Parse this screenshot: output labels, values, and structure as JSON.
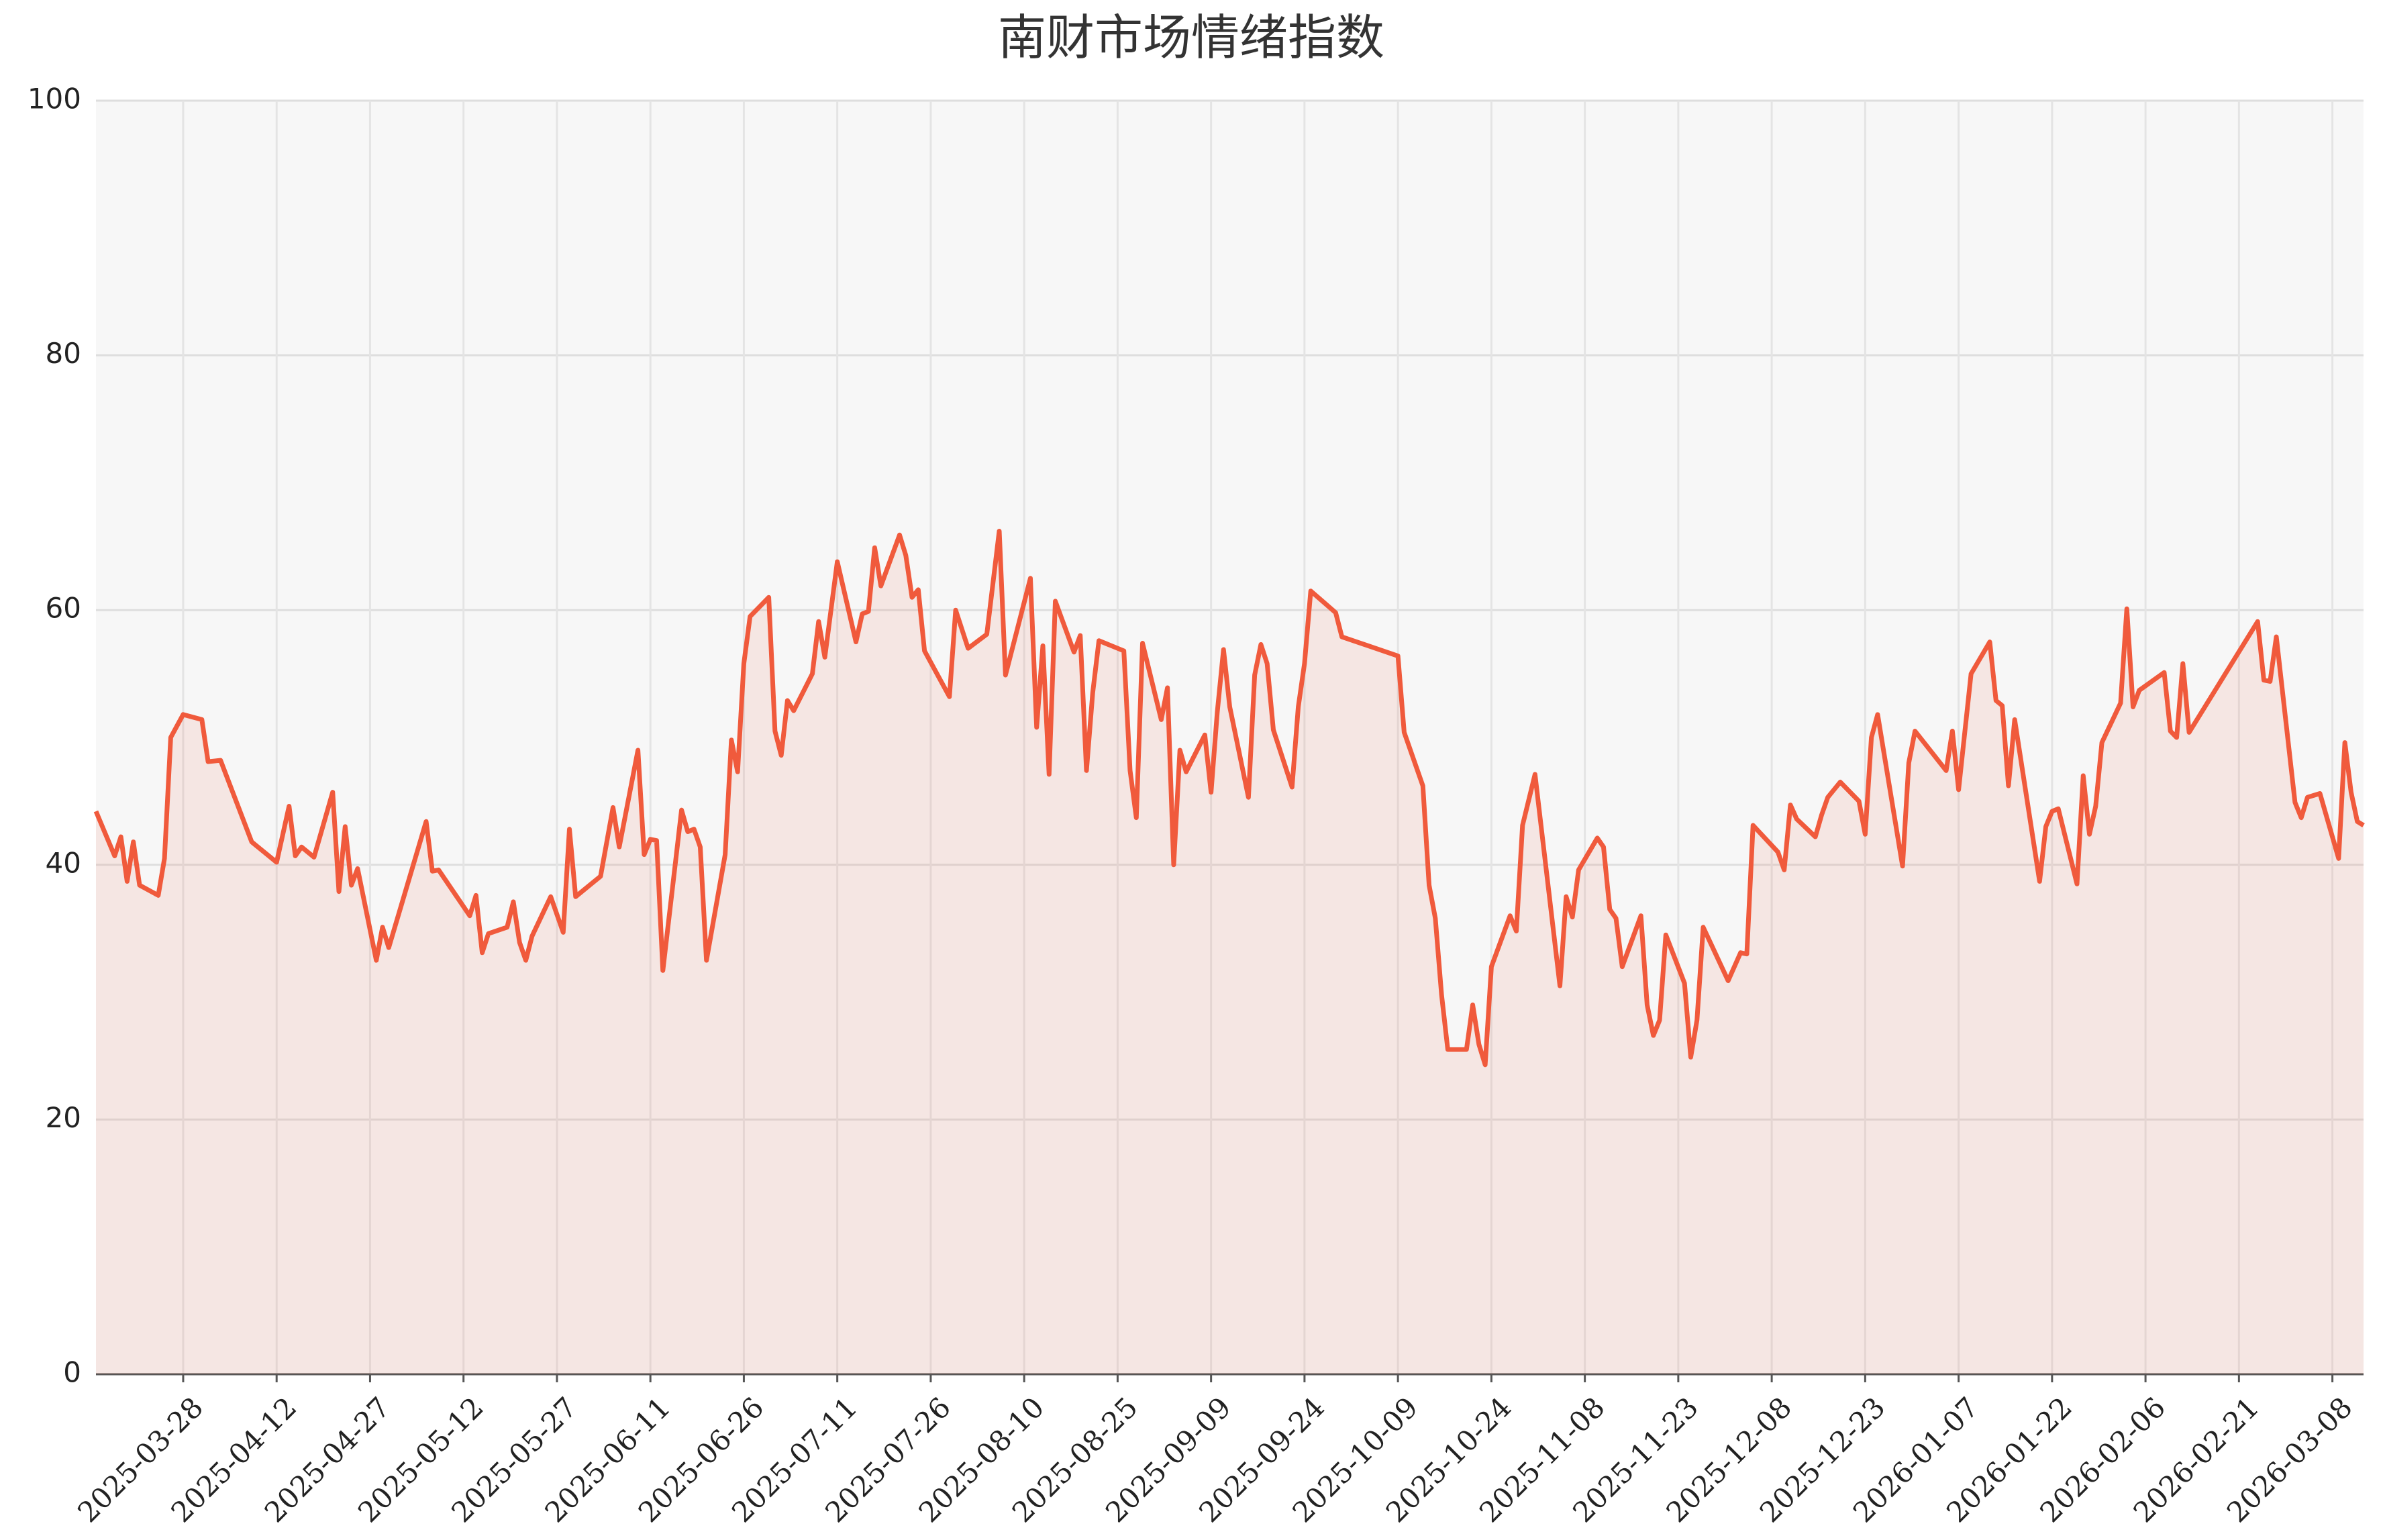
{
  "chart_data": {
    "type": "line",
    "title": "南财市场情绪指数",
    "x": [
      "2025-03-14",
      "2025-03-17",
      "2025-03-18",
      "2025-03-19",
      "2025-03-20",
      "2025-03-21",
      "2025-03-24",
      "2025-03-25",
      "2025-03-26",
      "2025-03-28",
      "2025-03-31",
      "2025-04-01",
      "2025-04-03",
      "2025-04-08",
      "2025-04-12",
      "2025-04-14",
      "2025-04-15",
      "2025-04-16",
      "2025-04-18",
      "2025-04-21",
      "2025-04-22",
      "2025-04-23",
      "2025-04-24",
      "2025-04-25",
      "2025-04-28",
      "2025-04-29",
      "2025-04-30",
      "2025-05-06",
      "2025-05-07",
      "2025-05-08",
      "2025-05-13",
      "2025-05-14",
      "2025-05-15",
      "2025-05-16",
      "2025-05-19",
      "2025-05-20",
      "2025-05-21",
      "2025-05-22",
      "2025-05-23",
      "2025-05-26",
      "2025-05-28",
      "2025-05-29",
      "2025-05-30",
      "2025-06-03",
      "2025-06-05",
      "2025-06-06",
      "2025-06-09",
      "2025-06-10",
      "2025-06-11",
      "2025-06-12",
      "2025-06-13",
      "2025-06-16",
      "2025-06-17",
      "2025-06-18",
      "2025-06-19",
      "2025-06-20",
      "2025-06-23",
      "2025-06-24",
      "2025-06-25",
      "2025-06-26",
      "2025-06-27",
      "2025-06-30",
      "2025-07-01",
      "2025-07-02",
      "2025-07-03",
      "2025-07-04",
      "2025-07-07",
      "2025-07-08",
      "2025-07-09",
      "2025-07-11",
      "2025-07-14",
      "2025-07-15",
      "2025-07-16",
      "2025-07-17",
      "2025-07-18",
      "2025-07-21",
      "2025-07-22",
      "2025-07-23",
      "2025-07-24",
      "2025-07-25",
      "2025-07-29",
      "2025-07-30",
      "2025-08-01",
      "2025-08-04",
      "2025-08-06",
      "2025-08-07",
      "2025-08-11",
      "2025-08-12",
      "2025-08-13",
      "2025-08-14",
      "2025-08-15",
      "2025-08-18",
      "2025-08-19",
      "2025-08-20",
      "2025-08-21",
      "2025-08-22",
      "2025-08-26",
      "2025-08-27",
      "2025-08-28",
      "2025-08-29",
      "2025-09-01",
      "2025-09-02",
      "2025-09-03",
      "2025-09-04",
      "2025-09-05",
      "2025-09-08",
      "2025-09-09",
      "2025-09-10",
      "2025-09-11",
      "2025-09-12",
      "2025-09-15",
      "2025-09-16",
      "2025-09-17",
      "2025-09-18",
      "2025-09-19",
      "2025-09-22",
      "2025-09-23",
      "2025-09-24",
      "2025-09-25",
      "2025-09-29",
      "2025-09-30",
      "2025-10-09",
      "2025-10-10",
      "2025-10-13",
      "2025-10-14",
      "2025-10-15",
      "2025-10-16",
      "2025-10-17",
      "2025-10-20",
      "2025-10-21",
      "2025-10-22",
      "2025-10-23",
      "2025-10-24",
      "2025-10-27",
      "2025-10-28",
      "2025-10-29",
      "2025-10-31",
      "2025-11-04",
      "2025-11-05",
      "2025-11-06",
      "2025-11-07",
      "2025-11-10",
      "2025-11-11",
      "2025-11-12",
      "2025-11-13",
      "2025-11-14",
      "2025-11-17",
      "2025-11-18",
      "2025-11-19",
      "2025-11-20",
      "2025-11-21",
      "2025-11-24",
      "2025-11-25",
      "2025-11-26",
      "2025-11-27",
      "2025-12-01",
      "2025-12-03",
      "2025-12-04",
      "2025-12-05",
      "2025-12-09",
      "2025-12-10",
      "2025-12-11",
      "2025-12-12",
      "2025-12-15",
      "2025-12-16",
      "2025-12-17",
      "2025-12-19",
      "2025-12-22",
      "2025-12-23",
      "2025-12-24",
      "2025-12-25",
      "2025-12-29",
      "2025-12-30",
      "2025-12-31",
      "2026-01-05",
      "2026-01-06",
      "2026-01-07",
      "2026-01-09",
      "2026-01-12",
      "2026-01-13",
      "2026-01-14",
      "2026-01-15",
      "2026-01-16",
      "2026-01-20",
      "2026-01-21",
      "2026-01-22",
      "2026-01-23",
      "2026-01-26",
      "2026-01-27",
      "2026-01-28",
      "2026-01-29",
      "2026-01-30",
      "2026-02-02",
      "2026-02-03",
      "2026-02-04",
      "2026-02-05",
      "2026-02-09",
      "2026-02-10",
      "2026-02-11",
      "2026-02-12",
      "2026-02-13",
      "2026-02-24",
      "2026-02-25",
      "2026-02-26",
      "2026-02-27",
      "2026-03-02",
      "2026-03-03",
      "2026-03-04",
      "2026-03-06",
      "2026-03-09",
      "2026-03-10",
      "2026-03-11",
      "2026-03-12",
      "2026-03-13"
    ],
    "series": [
      {
        "name": "南财市场情绪指数",
        "color": "#f05a3c",
        "values": [
          44.2,
          40.7,
          42.2,
          38.7,
          41.8,
          38.4,
          37.6,
          40.5,
          50,
          51.8,
          51.4,
          48.1,
          48.2,
          41.8,
          40.2,
          44.6,
          40.7,
          41.4,
          40.6,
          45.7,
          37.9,
          43,
          38.4,
          39.7,
          32.5,
          35.1,
          33.5,
          43.4,
          39.5,
          39.6,
          36,
          37.6,
          33.1,
          34.6,
          35.1,
          37.1,
          33.9,
          32.5,
          34.4,
          37.5,
          34.7,
          42.8,
          37.5,
          39.1,
          44.5,
          41.4,
          49,
          40.8,
          42,
          41.9,
          31.7,
          44.3,
          42.6,
          42.8,
          41.4,
          32.5,
          40.8,
          49.8,
          47.3,
          55.8,
          59.5,
          61,
          50.5,
          48.6,
          52.9,
          52.1,
          55,
          59.1,
          56.3,
          63.8,
          57.5,
          59.7,
          59.9,
          64.9,
          61.9,
          65.9,
          64.3,
          61,
          61.6,
          56.8,
          53.2,
          60,
          57,
          58.1,
          66.2,
          54.9,
          62.5,
          50.8,
          57.2,
          47.1,
          60.7,
          56.7,
          58,
          47.4,
          53.5,
          57.6,
          56.8,
          47.4,
          43.7,
          57.4,
          51.4,
          53.9,
          40,
          49,
          47.3,
          50.2,
          45.7,
          52,
          56.9,
          52.4,
          45.3,
          54.9,
          57.3,
          55.8,
          50.6,
          46.1,
          52.4,
          55.8,
          61.5,
          59.8,
          57.9,
          56.4,
          50.4,
          46.2,
          38.4,
          35.8,
          29.8,
          25.5,
          25.5,
          29,
          25.9,
          24.3,
          32,
          36,
          34.8,
          43.1,
          47.1,
          30.5,
          37.5,
          35.9,
          39.6,
          42.1,
          41.4,
          36.5,
          35.8,
          32,
          36,
          29,
          26.6,
          27.8,
          34.5,
          30.7,
          24.9,
          27.8,
          35.1,
          30.9,
          33.1,
          33,
          43.1,
          41,
          39.6,
          44.7,
          43.6,
          42.2,
          43.9,
          45.3,
          46.5,
          45,
          42.4,
          50,
          51.8,
          39.9,
          48,
          50.5,
          47.4,
          50.5,
          45.9,
          55,
          57.5,
          52.9,
          52.5,
          46.2,
          51.4,
          38.7,
          43,
          44.2,
          44.4,
          38.5,
          47,
          42.4,
          44.6,
          49.6,
          52.7,
          60.1,
          52.4,
          53.7,
          55.1,
          50.5,
          50,
          55.8,
          50.4,
          59.1,
          54.5,
          54.4,
          57.9,
          44.9,
          43.7,
          45.3,
          45.6,
          40.5,
          49.6,
          45.7,
          43.4,
          43.1
        ]
      }
    ],
    "xlim": [
      "2025-03-14",
      "2026-03-13"
    ],
    "xticks": [
      "2025-03-28",
      "2025-04-12",
      "2025-04-27",
      "2025-05-12",
      "2025-05-27",
      "2025-06-11",
      "2025-06-26",
      "2025-07-11",
      "2025-07-26",
      "2025-08-10",
      "2025-08-25",
      "2025-09-09",
      "2025-09-24",
      "2025-10-09",
      "2025-10-24",
      "2025-11-08",
      "2025-11-23",
      "2025-12-08",
      "2025-12-23",
      "2026-01-07",
      "2026-01-22",
      "2026-02-06",
      "2026-02-21",
      "2026-03-08"
    ],
    "ylim": [
      0,
      100
    ],
    "yticks": [
      0,
      20,
      40,
      60,
      80,
      100
    ],
    "grid": true,
    "fill_area": true
  }
}
